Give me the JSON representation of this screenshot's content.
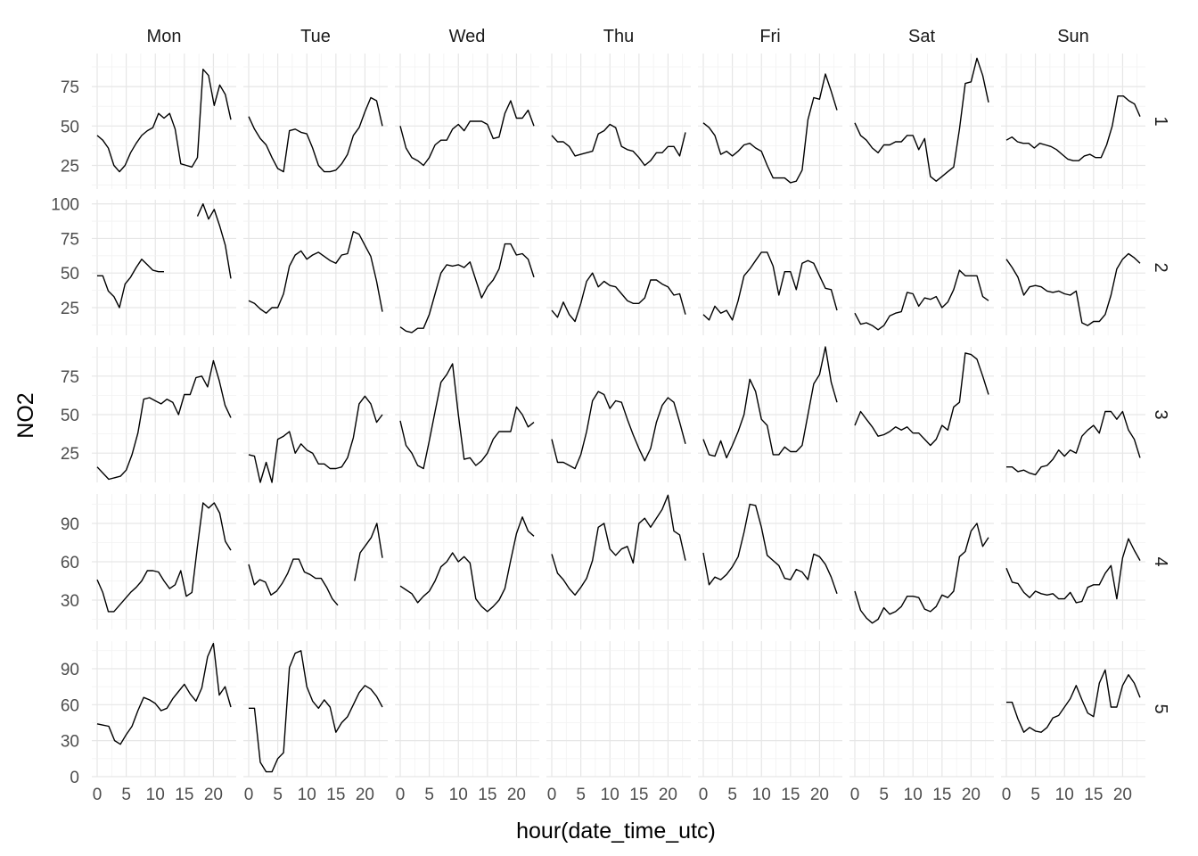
{
  "chart_data": {
    "type": "line",
    "facet_columns": [
      "Mon",
      "Tue",
      "Wed",
      "Thu",
      "Fri",
      "Sat",
      "Sun"
    ],
    "facet_rows": [
      "1",
      "2",
      "3",
      "4",
      "5"
    ],
    "xlabel": "hour(date_time_utc)",
    "ylabel": "NO2",
    "xlim": [
      0,
      23
    ],
    "x_ticks": [
      0,
      5,
      10,
      15,
      20
    ],
    "x_tick_labels": [
      "0",
      "5",
      "10",
      "15",
      "20"
    ],
    "grid": true,
    "row_scales": [
      {
        "row": "1",
        "ylim": [
          10,
          96
        ],
        "ticks": [
          25,
          50,
          75
        ]
      },
      {
        "row": "2",
        "ylim": [
          5,
          103
        ],
        "ticks": [
          25,
          50,
          75,
          100
        ]
      },
      {
        "row": "3",
        "ylim": [
          6,
          94
        ],
        "ticks": [
          25,
          50,
          75
        ]
      },
      {
        "row": "4",
        "ylim": [
          7,
          113
        ],
        "ticks": [
          30,
          60,
          90
        ]
      },
      {
        "row": "5",
        "ylim": [
          0,
          113
        ],
        "ticks": [
          0,
          30,
          60,
          90
        ]
      }
    ],
    "panels": [
      {
        "row": "1",
        "col": "Mon",
        "y": [
          44,
          41,
          36,
          25,
          21,
          25,
          33,
          39,
          44,
          47,
          49,
          58,
          55,
          58,
          48,
          26,
          25,
          24,
          30,
          86,
          82,
          63,
          76,
          70,
          54
        ]
      },
      {
        "row": "1",
        "col": "Tue",
        "y": [
          56,
          48,
          42,
          38,
          30,
          23,
          21,
          47,
          48,
          46,
          45,
          36,
          25,
          21,
          21,
          22,
          26,
          32,
          44,
          49,
          59,
          68,
          66,
          50
        ]
      },
      {
        "row": "1",
        "col": "Wed",
        "y": [
          50,
          36,
          30,
          28,
          25,
          30,
          38,
          41,
          41,
          48,
          51,
          47,
          53,
          53,
          53,
          51,
          42,
          43,
          58,
          66,
          55,
          55,
          60,
          50
        ]
      },
      {
        "row": "1",
        "col": "Thu",
        "y": [
          44,
          40,
          40,
          37,
          31,
          32,
          33,
          34,
          45,
          47,
          51,
          49,
          37,
          35,
          34,
          30,
          25,
          28,
          33,
          33,
          37,
          37,
          31,
          46
        ]
      },
      {
        "row": "1",
        "col": "Fri",
        "y": [
          52,
          49,
          44,
          32,
          34,
          31,
          34,
          38,
          39,
          36,
          34,
          25,
          17,
          17,
          17,
          14,
          15,
          22,
          54,
          68,
          67,
          83,
          72,
          60
        ]
      },
      {
        "row": "1",
        "col": "Sat",
        "y": [
          52,
          44,
          41,
          36,
          33,
          38,
          38,
          40,
          40,
          44,
          44,
          35,
          42,
          18,
          15,
          18,
          21,
          24,
          48,
          77,
          78,
          93,
          82,
          65
        ]
      },
      {
        "row": "1",
        "col": "Sun",
        "y": [
          41,
          43,
          40,
          39,
          39,
          36,
          39,
          38,
          37,
          35,
          32,
          29,
          28,
          28,
          31,
          32,
          30,
          30,
          38,
          50,
          69,
          69,
          66,
          64,
          56
        ]
      },
      {
        "row": "2",
        "col": "Mon",
        "y": [
          48,
          48,
          37,
          33,
          25,
          42,
          47,
          54,
          60,
          56,
          52,
          51,
          51,
          null,
          null,
          null,
          null,
          null,
          91,
          100,
          89,
          96,
          84,
          70,
          46
        ]
      },
      {
        "row": "2",
        "col": "Tue",
        "y": [
          30,
          28,
          24,
          21,
          25,
          25,
          35,
          55,
          63,
          66,
          60,
          63,
          65,
          62,
          59,
          57,
          63,
          64,
          80,
          78,
          70,
          62,
          44,
          22
        ]
      },
      {
        "row": "2",
        "col": "Wed",
        "y": [
          11,
          8,
          7,
          10,
          10,
          20,
          35,
          50,
          56,
          55,
          56,
          54,
          58,
          45,
          32,
          40,
          45,
          53,
          71,
          71,
          63,
          64,
          60,
          47
        ]
      },
      {
        "row": "2",
        "col": "Thu",
        "y": [
          23,
          18,
          29,
          20,
          15,
          28,
          44,
          50,
          40,
          44,
          41,
          40,
          35,
          30,
          28,
          28,
          32,
          45,
          45,
          42,
          40,
          34,
          35,
          20
        ]
      },
      {
        "row": "2",
        "col": "Fri",
        "y": [
          20,
          16,
          26,
          21,
          23,
          16,
          30,
          48,
          53,
          59,
          65,
          65,
          55,
          34,
          51,
          51,
          38,
          57,
          59,
          57,
          48,
          39,
          38,
          23
        ]
      },
      {
        "row": "2",
        "col": "Sat",
        "y": [
          21,
          13,
          14,
          12,
          9,
          12,
          19,
          21,
          22,
          36,
          35,
          26,
          32,
          31,
          33,
          25,
          29,
          38,
          52,
          48,
          48,
          48,
          33,
          30
        ]
      },
      {
        "row": "2",
        "col": "Sun",
        "y": [
          60,
          54,
          47,
          34,
          40,
          41,
          40,
          37,
          36,
          37,
          35,
          34,
          37,
          14,
          12,
          15,
          15,
          20,
          34,
          53,
          60,
          64,
          61,
          57
        ]
      },
      {
        "row": "3",
        "col": "Mon",
        "y": [
          16,
          12,
          8,
          9,
          10,
          14,
          24,
          38,
          60,
          61,
          59,
          57,
          60,
          58,
          50,
          63,
          63,
          74,
          75,
          68,
          85,
          72,
          56,
          48
        ]
      },
      {
        "row": "3",
        "col": "Tue",
        "y": [
          24,
          23,
          6,
          19,
          6,
          34,
          36,
          39,
          25,
          31,
          27,
          25,
          18,
          18,
          15,
          15,
          16,
          22,
          35,
          57,
          62,
          57,
          45,
          50
        ]
      },
      {
        "row": "3",
        "col": "Wed",
        "y": [
          46,
          30,
          25,
          17,
          15,
          33,
          52,
          71,
          76,
          83,
          50,
          21,
          22,
          17,
          20,
          25,
          34,
          39,
          39,
          39,
          55,
          50,
          42,
          45
        ]
      },
      {
        "row": "3",
        "col": "Thu",
        "y": [
          34,
          19,
          19,
          17,
          15,
          24,
          39,
          59,
          65,
          63,
          54,
          59,
          58,
          47,
          37,
          28,
          20,
          28,
          45,
          56,
          61,
          58,
          45,
          31
        ]
      },
      {
        "row": "3",
        "col": "Fri",
        "y": [
          34,
          24,
          23,
          33,
          22,
          30,
          39,
          50,
          73,
          65,
          47,
          43,
          24,
          24,
          29,
          26,
          26,
          30,
          50,
          70,
          76,
          94,
          71,
          58
        ]
      },
      {
        "row": "3",
        "col": "Sat",
        "y": [
          43,
          52,
          47,
          42,
          36,
          37,
          39,
          42,
          40,
          42,
          38,
          38,
          34,
          30,
          34,
          43,
          40,
          55,
          58,
          90,
          89,
          86,
          75,
          63
        ]
      },
      {
        "row": "3",
        "col": "Sun",
        "y": [
          16,
          16,
          13,
          14,
          12,
          11,
          16,
          17,
          21,
          27,
          23,
          27,
          25,
          36,
          40,
          43,
          38,
          52,
          52,
          47,
          52,
          40,
          34,
          22
        ]
      },
      {
        "row": "4",
        "col": "Mon",
        "y": [
          46,
          36,
          21,
          21,
          26,
          31,
          36,
          40,
          45,
          53,
          53,
          52,
          45,
          39,
          42,
          53,
          33,
          36,
          72,
          106,
          102,
          106,
          98,
          76,
          69
        ]
      },
      {
        "row": "4",
        "col": "Tue",
        "y": [
          58,
          42,
          46,
          44,
          34,
          37,
          43,
          51,
          62,
          62,
          52,
          50,
          47,
          47,
          40,
          31,
          26,
          null,
          null,
          45,
          67,
          73,
          79,
          90,
          63
        ]
      },
      {
        "row": "4",
        "col": "Wed",
        "y": [
          41,
          38,
          35,
          28,
          33,
          37,
          45,
          56,
          60,
          67,
          60,
          64,
          59,
          31,
          25,
          21,
          25,
          30,
          39,
          61,
          82,
          95,
          84,
          80
        ]
      },
      {
        "row": "4",
        "col": "Thu",
        "y": [
          66,
          51,
          46,
          39,
          34,
          40,
          47,
          61,
          87,
          90,
          70,
          65,
          70,
          72,
          59,
          90,
          94,
          87,
          94,
          101,
          112,
          84,
          81,
          61
        ]
      },
      {
        "row": "4",
        "col": "Fri",
        "y": [
          67,
          42,
          48,
          46,
          50,
          56,
          64,
          83,
          105,
          104,
          87,
          65,
          61,
          57,
          47,
          46,
          54,
          52,
          46,
          66,
          64,
          58,
          48,
          35
        ]
      },
      {
        "row": "4",
        "col": "Sat",
        "y": [
          37,
          22,
          16,
          12,
          15,
          24,
          19,
          21,
          25,
          33,
          33,
          32,
          23,
          21,
          25,
          34,
          32,
          37,
          64,
          68,
          84,
          90,
          72,
          79
        ]
      },
      {
        "row": "4",
        "col": "Sun",
        "y": [
          55,
          44,
          43,
          36,
          32,
          37,
          35,
          34,
          35,
          31,
          31,
          36,
          28,
          29,
          40,
          42,
          42,
          51,
          57,
          31,
          63,
          78,
          69,
          61
        ]
      },
      {
        "row": "5",
        "col": "Mon",
        "y": [
          44,
          43,
          42,
          30,
          27,
          35,
          42,
          55,
          66,
          64,
          61,
          55,
          57,
          65,
          71,
          77,
          69,
          63,
          74,
          100,
          111,
          68,
          75,
          58
        ]
      },
      {
        "row": "5",
        "col": "Tue",
        "y": [
          57,
          57,
          12,
          4,
          4,
          15,
          20,
          91,
          103,
          105,
          75,
          63,
          57,
          64,
          58,
          37,
          45,
          50,
          60,
          70,
          76,
          73,
          67,
          58
        ]
      },
      {
        "row": "5",
        "col": "Sun",
        "y": [
          62,
          62,
          48,
          37,
          41,
          38,
          37,
          41,
          49,
          51,
          58,
          65,
          76,
          64,
          53,
          50,
          78,
          89,
          58,
          58,
          76,
          85,
          78,
          66
        ]
      }
    ]
  }
}
